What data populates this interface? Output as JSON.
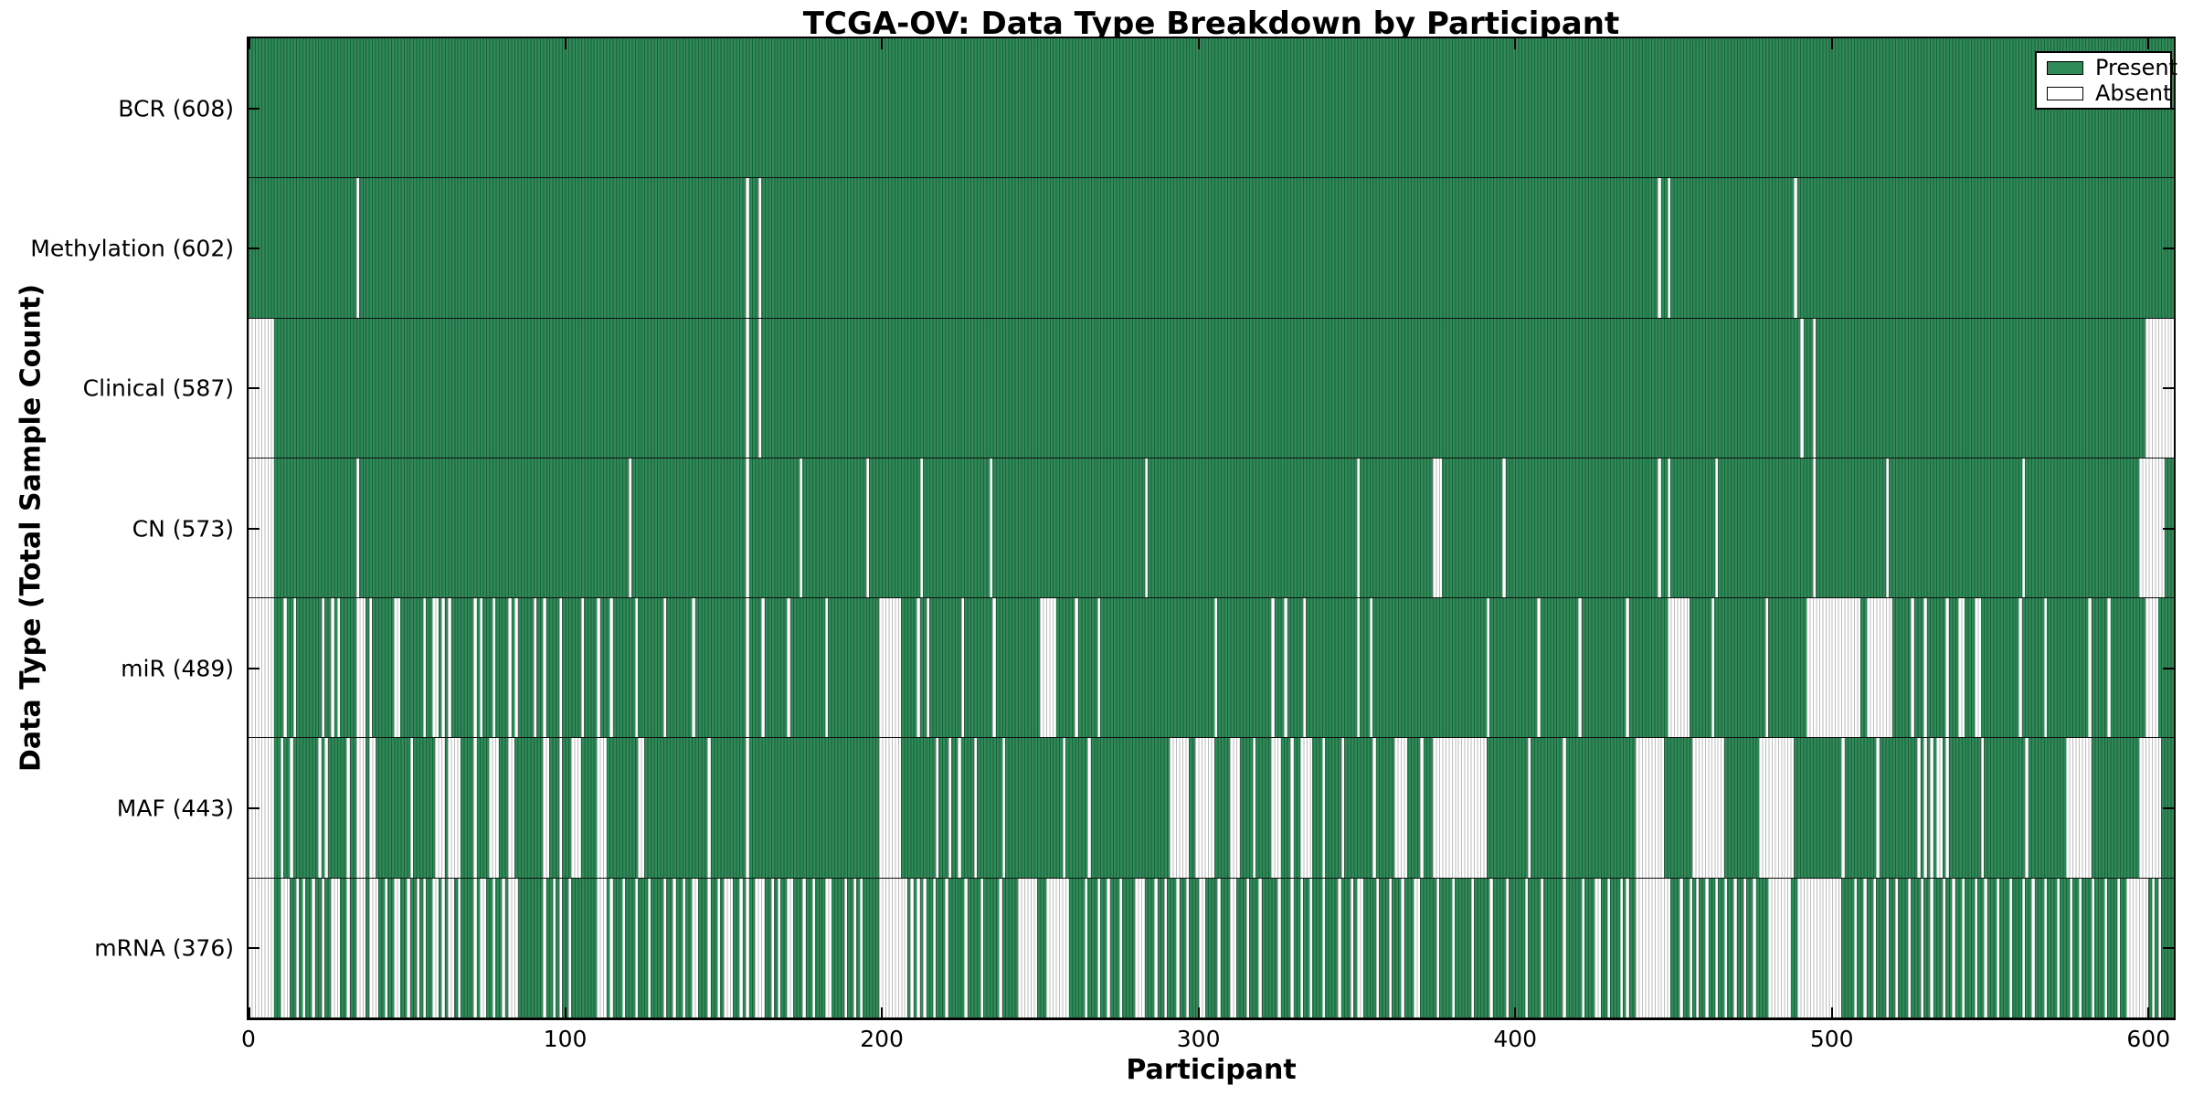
{
  "chart_data": {
    "type": "heatmap",
    "title": "TCGA-OV: Data Type Breakdown by Participant",
    "xlabel": "Participant",
    "ylabel": "Data Type (Total Sample Count)",
    "legend": [
      "Present",
      "Absent"
    ],
    "legend_position": "upper right",
    "n_participants": 608,
    "x_min": 0,
    "x_max": 608,
    "x_ticks": [
      0,
      100,
      200,
      300,
      400,
      500,
      600
    ],
    "cell_states": [
      "present",
      "absent"
    ],
    "rows": [
      {
        "name": "BCR",
        "label": "BCR (608)",
        "present_count": 608,
        "absent_count": 0,
        "absent_runs": []
      },
      {
        "name": "Methylation",
        "label": "Methylation (602)",
        "present_count": 602,
        "absent_count": 6,
        "absent_runs": [
          [
            34,
            1
          ],
          [
            157,
            1
          ],
          [
            161,
            1
          ],
          [
            445,
            1
          ],
          [
            448,
            1
          ],
          [
            488,
            1
          ]
        ]
      },
      {
        "name": "Clinical",
        "label": "Clinical (587)",
        "present_count": 587,
        "absent_count": 21,
        "absent_runs": [
          [
            0,
            8
          ],
          [
            157,
            1
          ],
          [
            161,
            1
          ],
          [
            490,
            1
          ],
          [
            494,
            1
          ],
          [
            599,
            9
          ]
        ]
      },
      {
        "name": "CN",
        "label": "CN (573)",
        "present_count": 573,
        "absent_count": 35,
        "absent_runs": [
          [
            0,
            8
          ],
          [
            34,
            1
          ],
          [
            120,
            1
          ],
          [
            157,
            1
          ],
          [
            174,
            1
          ],
          [
            195,
            1
          ],
          [
            212,
            1
          ],
          [
            234,
            1
          ],
          [
            283,
            1
          ],
          [
            350,
            1
          ],
          [
            374,
            3
          ],
          [
            396,
            1
          ],
          [
            445,
            1
          ],
          [
            448,
            1
          ],
          [
            463,
            1
          ],
          [
            494,
            1
          ],
          [
            517,
            1
          ],
          [
            560,
            1
          ],
          [
            597,
            8
          ]
        ]
      },
      {
        "name": "miR",
        "label": "miR (489)",
        "present_count": 489,
        "absent_count": 119,
        "absent_runs": [
          [
            0,
            8
          ],
          [
            11,
            1
          ],
          [
            14,
            1
          ],
          [
            23,
            1
          ],
          [
            26,
            1
          ],
          [
            28,
            1
          ],
          [
            34,
            3
          ],
          [
            38,
            1
          ],
          [
            46,
            2
          ],
          [
            55,
            1
          ],
          [
            58,
            2
          ],
          [
            61,
            1
          ],
          [
            63,
            1
          ],
          [
            71,
            1
          ],
          [
            73,
            1
          ],
          [
            77,
            1
          ],
          [
            82,
            1
          ],
          [
            84,
            1
          ],
          [
            90,
            1
          ],
          [
            93,
            1
          ],
          [
            98,
            1
          ],
          [
            105,
            1
          ],
          [
            110,
            1
          ],
          [
            114,
            1
          ],
          [
            122,
            1
          ],
          [
            131,
            1
          ],
          [
            140,
            1
          ],
          [
            157,
            1
          ],
          [
            162,
            1
          ],
          [
            170,
            1
          ],
          [
            182,
            1
          ],
          [
            199,
            7
          ],
          [
            211,
            1
          ],
          [
            214,
            1
          ],
          [
            225,
            1
          ],
          [
            235,
            1
          ],
          [
            250,
            5
          ],
          [
            261,
            1
          ],
          [
            268,
            1
          ],
          [
            305,
            1
          ],
          [
            323,
            1
          ],
          [
            327,
            1
          ],
          [
            333,
            1
          ],
          [
            350,
            1
          ],
          [
            354,
            1
          ],
          [
            391,
            1
          ],
          [
            407,
            1
          ],
          [
            420,
            1
          ],
          [
            435,
            1
          ],
          [
            448,
            7
          ],
          [
            462,
            1
          ],
          [
            479,
            1
          ],
          [
            492,
            17
          ],
          [
            511,
            8
          ],
          [
            525,
            1
          ],
          [
            529,
            1
          ],
          [
            536,
            1
          ],
          [
            540,
            2
          ],
          [
            545,
            2
          ],
          [
            559,
            1
          ],
          [
            567,
            1
          ],
          [
            581,
            1
          ],
          [
            587,
            1
          ],
          [
            599,
            4
          ]
        ]
      },
      {
        "name": "MAF",
        "label": "MAF (443)",
        "present_count": 443,
        "absent_count": 165,
        "absent_runs": [
          [
            0,
            8
          ],
          [
            10,
            1
          ],
          [
            13,
            1
          ],
          [
            22,
            1
          ],
          [
            24,
            1
          ],
          [
            31,
            1
          ],
          [
            34,
            3
          ],
          [
            38,
            2
          ],
          [
            51,
            1
          ],
          [
            59,
            3
          ],
          [
            63,
            4
          ],
          [
            71,
            1
          ],
          [
            76,
            3
          ],
          [
            82,
            2
          ],
          [
            93,
            2
          ],
          [
            98,
            1
          ],
          [
            102,
            3
          ],
          [
            110,
            3
          ],
          [
            123,
            2
          ],
          [
            145,
            1
          ],
          [
            157,
            1
          ],
          [
            199,
            7
          ],
          [
            217,
            1
          ],
          [
            221,
            1
          ],
          [
            224,
            1
          ],
          [
            229,
            1
          ],
          [
            238,
            1
          ],
          [
            257,
            1
          ],
          [
            265,
            1
          ],
          [
            291,
            6
          ],
          [
            299,
            6
          ],
          [
            310,
            3
          ],
          [
            317,
            1
          ],
          [
            323,
            3
          ],
          [
            329,
            1
          ],
          [
            332,
            4
          ],
          [
            339,
            1
          ],
          [
            345,
            1
          ],
          [
            355,
            1
          ],
          [
            362,
            4
          ],
          [
            370,
            1
          ],
          [
            374,
            17
          ],
          [
            404,
            1
          ],
          [
            415,
            1
          ],
          [
            438,
            9
          ],
          [
            456,
            10
          ],
          [
            477,
            11
          ],
          [
            503,
            1
          ],
          [
            514,
            1
          ],
          [
            527,
            1
          ],
          [
            529,
            1
          ],
          [
            531,
            1
          ],
          [
            533,
            2
          ],
          [
            536,
            1
          ],
          [
            547,
            1
          ],
          [
            561,
            1
          ],
          [
            574,
            8
          ],
          [
            597,
            7
          ]
        ]
      },
      {
        "name": "mRNA",
        "label": "mRNA (376)",
        "present_count": 376,
        "absent_count": 232,
        "absent_runs": [
          [
            0,
            8
          ],
          [
            10,
            3
          ],
          [
            15,
            1
          ],
          [
            17,
            1
          ],
          [
            20,
            1
          ],
          [
            23,
            1
          ],
          [
            26,
            3
          ],
          [
            31,
            1
          ],
          [
            34,
            3
          ],
          [
            38,
            3
          ],
          [
            43,
            1
          ],
          [
            46,
            2
          ],
          [
            50,
            1
          ],
          [
            53,
            1
          ],
          [
            55,
            1
          ],
          [
            58,
            2
          ],
          [
            61,
            1
          ],
          [
            63,
            2
          ],
          [
            66,
            1
          ],
          [
            71,
            1
          ],
          [
            73,
            2
          ],
          [
            77,
            1
          ],
          [
            80,
            1
          ],
          [
            82,
            3
          ],
          [
            93,
            1
          ],
          [
            96,
            1
          ],
          [
            98,
            1
          ],
          [
            101,
            1
          ],
          [
            110,
            3
          ],
          [
            114,
            1
          ],
          [
            118,
            1
          ],
          [
            122,
            1
          ],
          [
            126,
            1
          ],
          [
            131,
            1
          ],
          [
            134,
            1
          ],
          [
            137,
            1
          ],
          [
            140,
            2
          ],
          [
            145,
            1
          ],
          [
            148,
            1
          ],
          [
            150,
            3
          ],
          [
            155,
            1
          ],
          [
            157,
            1
          ],
          [
            160,
            3
          ],
          [
            165,
            1
          ],
          [
            167,
            1
          ],
          [
            170,
            2
          ],
          [
            175,
            1
          ],
          [
            178,
            1
          ],
          [
            182,
            2
          ],
          [
            188,
            1
          ],
          [
            191,
            1
          ],
          [
            193,
            1
          ],
          [
            199,
            9
          ],
          [
            209,
            1
          ],
          [
            211,
            1
          ],
          [
            213,
            1
          ],
          [
            216,
            1
          ],
          [
            220,
            1
          ],
          [
            226,
            1
          ],
          [
            231,
            1
          ],
          [
            237,
            1
          ],
          [
            243,
            6
          ],
          [
            252,
            7
          ],
          [
            264,
            1
          ],
          [
            268,
            1
          ],
          [
            271,
            1
          ],
          [
            275,
            1
          ],
          [
            280,
            3
          ],
          [
            286,
            1
          ],
          [
            289,
            1
          ],
          [
            293,
            1
          ],
          [
            296,
            1
          ],
          [
            300,
            2
          ],
          [
            306,
            1
          ],
          [
            310,
            2
          ],
          [
            315,
            1
          ],
          [
            319,
            1
          ],
          [
            325,
            1
          ],
          [
            329,
            1
          ],
          [
            332,
            1
          ],
          [
            335,
            1
          ],
          [
            339,
            1
          ],
          [
            344,
            1
          ],
          [
            348,
            1
          ],
          [
            350,
            2
          ],
          [
            356,
            1
          ],
          [
            360,
            1
          ],
          [
            364,
            1
          ],
          [
            368,
            2
          ],
          [
            375,
            1
          ],
          [
            380,
            1
          ],
          [
            386,
            1
          ],
          [
            392,
            1
          ],
          [
            397,
            1
          ],
          [
            403,
            1
          ],
          [
            408,
            1
          ],
          [
            415,
            1
          ],
          [
            421,
            1
          ],
          [
            425,
            2
          ],
          [
            429,
            1
          ],
          [
            433,
            1
          ],
          [
            435,
            1
          ],
          [
            438,
            11
          ],
          [
            452,
            1
          ],
          [
            455,
            1
          ],
          [
            457,
            1
          ],
          [
            460,
            1
          ],
          [
            463,
            1
          ],
          [
            466,
            1
          ],
          [
            469,
            1
          ],
          [
            472,
            1
          ],
          [
            475,
            1
          ],
          [
            480,
            7
          ],
          [
            489,
            14
          ],
          [
            507,
            1
          ],
          [
            510,
            1
          ],
          [
            513,
            1
          ],
          [
            517,
            1
          ],
          [
            520,
            1
          ],
          [
            524,
            1
          ],
          [
            528,
            1
          ],
          [
            531,
            1
          ],
          [
            535,
            1
          ],
          [
            538,
            1
          ],
          [
            541,
            1
          ],
          [
            545,
            1
          ],
          [
            548,
            1
          ],
          [
            552,
            1
          ],
          [
            556,
            1
          ],
          [
            560,
            1
          ],
          [
            563,
            1
          ],
          [
            567,
            1
          ],
          [
            571,
            1
          ],
          [
            575,
            1
          ],
          [
            578,
            1
          ],
          [
            582,
            1
          ],
          [
            586,
            1
          ],
          [
            590,
            1
          ],
          [
            593,
            7
          ],
          [
            601,
            1
          ],
          [
            603,
            1
          ]
        ]
      }
    ]
  },
  "colors": {
    "present": "#2e8b57",
    "present_edge": "#1f5f3c",
    "absent": "#ffffff",
    "absent_edge": "#bcbcbc",
    "frame": "#000000"
  }
}
